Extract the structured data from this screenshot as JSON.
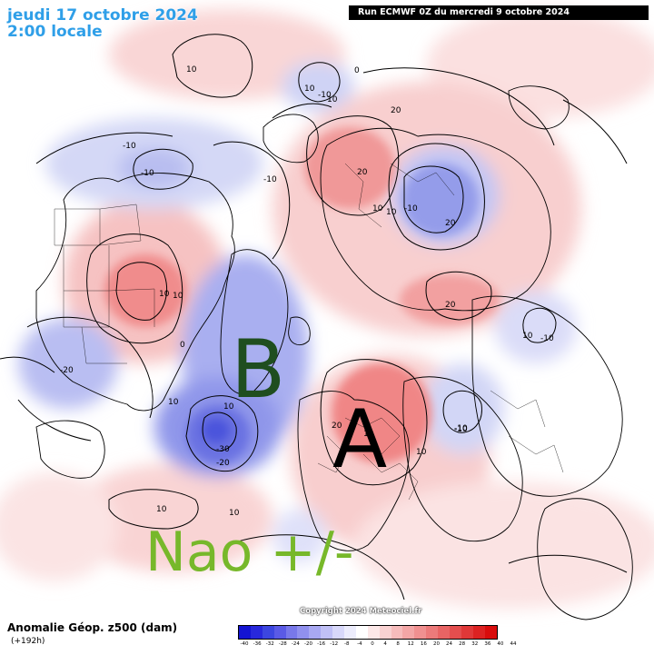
{
  "header": {
    "date": "jeudi 17 octobre 2024",
    "local_time": "2:00 locale",
    "run": "Run ECMWF 0Z du mercredi 9 octobre 2024"
  },
  "overlay": {
    "low_letter": "B",
    "high_letter": "A",
    "nao_text": "Nao +/-"
  },
  "contour_labels": [
    "10",
    "-10",
    "10",
    "0",
    "-10",
    "-10",
    "-10",
    "10",
    "20",
    "20",
    "10",
    "10",
    "-10",
    "20",
    "20",
    "10",
    "10",
    "10",
    "-10",
    "10",
    "-10",
    "-20",
    "0",
    "10",
    "-30",
    "-20",
    "20",
    "10",
    "-10",
    "10",
    "10",
    "10"
  ],
  "footer": {
    "title": "Anomalie Géop. z500 (dam)",
    "lead_time": "(+192h)",
    "copyright": "Copyright 2024 Meteociel.fr"
  },
  "colorbar": {
    "ticks": [
      "-40",
      "-36",
      "-32",
      "-28",
      "-24",
      "-20",
      "-16",
      "-12",
      "-8",
      "-4",
      "0",
      "4",
      "8",
      "12",
      "16",
      "20",
      "24",
      "28",
      "32",
      "36",
      "40",
      "44"
    ],
    "colors": [
      "#1414d2",
      "#2828dc",
      "#3c46e0",
      "#5a5ae6",
      "#7878ea",
      "#9090ee",
      "#a8a8f2",
      "#c0c0f6",
      "#d8d8fa",
      "#ececfc",
      "#ffffff",
      "#fce8e8",
      "#f9d2d2",
      "#f6bcbc",
      "#f3a6a6",
      "#f09090",
      "#ec7a7a",
      "#e86464",
      "#e44e4e",
      "#e03838",
      "#dc2222",
      "#d80c0c"
    ]
  },
  "colors": {
    "positive": "#f08c8c",
    "negative": "#7b84e6",
    "letters_label": "#1f4e1f",
    "nao_label": "#77b82a"
  }
}
